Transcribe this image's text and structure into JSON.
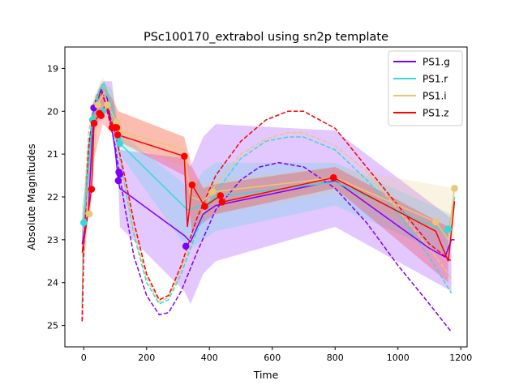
{
  "chart_data": {
    "type": "line",
    "title": "PSc100170_extrabol using sn2p template",
    "xlabel": "Time",
    "ylabel": "Absolute Magnitudes",
    "xlim": [
      -60,
      1220
    ],
    "ylim": [
      25.5,
      18.5
    ],
    "y_inverted": true,
    "xticks": [
      "0",
      "200",
      "400",
      "600",
      "800",
      "1000",
      "1200"
    ],
    "yticks": [
      "19",
      "20",
      "21",
      "22",
      "23",
      "24",
      "25"
    ],
    "grid": false,
    "legend_position": "top-right",
    "series": [
      {
        "name": "PS1.g",
        "color": "#7f00ff",
        "obs": [
          [
            32,
            19.92
          ],
          [
            110,
            21.62
          ],
          [
            112,
            21.42
          ],
          [
            115,
            21.47
          ],
          [
            325,
            23.15
          ]
        ],
        "band_upper": [
          [
            -5,
            22.5
          ],
          [
            30,
            19.8
          ],
          [
            60,
            19.3
          ],
          [
            90,
            19.3
          ],
          [
            110,
            20.6
          ],
          [
            115,
            20.9
          ],
          [
            320,
            21.1
          ],
          [
            340,
            21.3
          ],
          [
            380,
            20.6
          ],
          [
            420,
            20.3
          ],
          [
            800,
            20.45
          ],
          [
            1170,
            22.5
          ]
        ],
        "band_lower": [
          [
            -5,
            23.6
          ],
          [
            30,
            20.5
          ],
          [
            60,
            20.0
          ],
          [
            90,
            20.1
          ],
          [
            110,
            21.6
          ],
          [
            115,
            22.7
          ],
          [
            320,
            24.2
          ],
          [
            340,
            24.5
          ],
          [
            380,
            23.8
          ],
          [
            420,
            23.5
          ],
          [
            800,
            22.7
          ],
          [
            1170,
            24.2
          ]
        ],
        "mean_line": [
          [
            -5,
            23.1
          ],
          [
            15,
            22.3
          ],
          [
            32,
            19.92
          ],
          [
            55,
            19.5
          ],
          [
            75,
            19.7
          ],
          [
            100,
            20.9
          ],
          [
            110,
            21.62
          ],
          [
            115,
            21.8
          ],
          [
            320,
            22.9
          ],
          [
            340,
            23.05
          ],
          [
            380,
            22.4
          ],
          [
            420,
            22.2
          ],
          [
            800,
            21.62
          ],
          [
            1100,
            23.2
          ],
          [
            1150,
            23.4
          ],
          [
            1170,
            23.0
          ],
          [
            1180,
            23.0
          ]
        ],
        "template_fit": [
          [
            -5,
            24.9
          ],
          [
            0,
            23.0
          ],
          [
            15,
            20.8
          ],
          [
            35,
            19.8
          ],
          [
            55,
            19.4
          ],
          [
            75,
            20.0
          ],
          [
            100,
            20.8
          ],
          [
            130,
            22.2
          ],
          [
            160,
            23.4
          ],
          [
            200,
            24.3
          ],
          [
            240,
            24.75
          ],
          [
            270,
            24.7
          ],
          [
            310,
            24.2
          ],
          [
            360,
            23.3
          ],
          [
            420,
            22.3
          ],
          [
            500,
            21.6
          ],
          [
            560,
            21.3
          ],
          [
            620,
            21.2
          ],
          [
            700,
            21.3
          ],
          [
            800,
            21.8
          ],
          [
            900,
            22.6
          ],
          [
            1000,
            23.6
          ],
          [
            1100,
            24.5
          ],
          [
            1170,
            25.15
          ]
        ]
      },
      {
        "name": "PS1.r",
        "color": "#36d9d9",
        "obs": [
          [
            0,
            22.6
          ],
          [
            28,
            20.2
          ],
          [
            60,
            20.0
          ],
          [
            110,
            20.6
          ],
          [
            115,
            20.75
          ],
          [
            1160,
            22.75
          ]
        ],
        "band_upper": [
          [
            -5,
            22.2
          ],
          [
            30,
            19.8
          ],
          [
            60,
            19.3
          ],
          [
            90,
            19.5
          ],
          [
            115,
            20.5
          ],
          [
            320,
            21.7
          ],
          [
            340,
            21.9
          ],
          [
            380,
            21.4
          ],
          [
            420,
            21.2
          ],
          [
            800,
            21.2
          ],
          [
            1170,
            22.4
          ]
        ],
        "band_lower": [
          [
            -5,
            23.0
          ],
          [
            30,
            20.4
          ],
          [
            60,
            19.8
          ],
          [
            90,
            20.1
          ],
          [
            115,
            21.0
          ],
          [
            320,
            23.1
          ],
          [
            340,
            23.2
          ],
          [
            380,
            23.0
          ],
          [
            420,
            22.8
          ],
          [
            800,
            22.2
          ],
          [
            1170,
            23.4
          ]
        ],
        "mean_line": [
          [
            0,
            22.6
          ],
          [
            28,
            20.2
          ],
          [
            50,
            19.5
          ],
          [
            65,
            19.35
          ],
          [
            90,
            19.9
          ],
          [
            110,
            20.6
          ],
          [
            115,
            20.75
          ],
          [
            330,
            22.3
          ],
          [
            380,
            22.2
          ],
          [
            420,
            22.0
          ],
          [
            800,
            21.65
          ],
          [
            1160,
            22.85
          ],
          [
            1180,
            22.0
          ]
        ],
        "template_fit": [
          [
            -5,
            24.5
          ],
          [
            0,
            22.6
          ],
          [
            15,
            20.8
          ],
          [
            35,
            19.8
          ],
          [
            55,
            19.4
          ],
          [
            75,
            19.7
          ],
          [
            100,
            20.5
          ],
          [
            130,
            21.7
          ],
          [
            160,
            22.9
          ],
          [
            200,
            24.0
          ],
          [
            240,
            24.5
          ],
          [
            270,
            24.4
          ],
          [
            310,
            23.8
          ],
          [
            360,
            22.8
          ],
          [
            420,
            21.9
          ],
          [
            500,
            21.1
          ],
          [
            580,
            20.7
          ],
          [
            650,
            20.6
          ],
          [
            700,
            20.6
          ],
          [
            800,
            20.9
          ],
          [
            900,
            21.6
          ],
          [
            1000,
            22.4
          ],
          [
            1100,
            23.4
          ],
          [
            1170,
            24.25
          ]
        ]
      },
      {
        "name": "PS1.i",
        "color": "#e8c777",
        "obs": [
          [
            18,
            22.4
          ],
          [
            45,
            19.85
          ],
          [
            75,
            19.85
          ],
          [
            105,
            20.25
          ],
          [
            110,
            20.45
          ],
          [
            410,
            21.88
          ],
          [
            1120,
            22.58
          ],
          [
            1180,
            21.8
          ]
        ],
        "band_upper": [
          [
            -5,
            22.4
          ],
          [
            30,
            19.7
          ],
          [
            60,
            19.2
          ],
          [
            90,
            19.5
          ],
          [
            110,
            20.0
          ],
          [
            320,
            20.6
          ],
          [
            340,
            21.5
          ],
          [
            380,
            21.7
          ],
          [
            420,
            21.6
          ],
          [
            800,
            21.3
          ],
          [
            1180,
            21.8
          ]
        ],
        "band_lower": [
          [
            -5,
            23.3
          ],
          [
            30,
            20.4
          ],
          [
            60,
            19.9
          ],
          [
            90,
            20.2
          ],
          [
            110,
            20.7
          ],
          [
            320,
            21.3
          ],
          [
            340,
            22.5
          ],
          [
            380,
            22.5
          ],
          [
            420,
            22.4
          ],
          [
            800,
            21.9
          ],
          [
            1180,
            23.0
          ]
        ],
        "mean_line": [
          [
            18,
            22.4
          ],
          [
            45,
            19.85
          ],
          [
            65,
            19.55
          ],
          [
            75,
            19.85
          ],
          [
            105,
            20.25
          ],
          [
            110,
            20.45
          ],
          [
            320,
            20.9
          ],
          [
            340,
            22.0
          ],
          [
            380,
            22.1
          ],
          [
            410,
            21.88
          ],
          [
            800,
            21.55
          ],
          [
            1120,
            22.58
          ],
          [
            1160,
            23.0
          ],
          [
            1180,
            21.8
          ]
        ],
        "template_fit": [
          [
            -5,
            24.6
          ],
          [
            0,
            22.4
          ],
          [
            15,
            20.5
          ],
          [
            35,
            19.7
          ],
          [
            55,
            19.4
          ],
          [
            75,
            19.8
          ],
          [
            100,
            20.5
          ],
          [
            130,
            21.6
          ],
          [
            160,
            22.8
          ],
          [
            200,
            23.9
          ],
          [
            240,
            24.45
          ],
          [
            270,
            24.35
          ],
          [
            310,
            23.7
          ],
          [
            360,
            22.7
          ],
          [
            420,
            21.7
          ],
          [
            500,
            21.0
          ],
          [
            580,
            20.65
          ],
          [
            650,
            20.5
          ],
          [
            700,
            20.5
          ],
          [
            800,
            20.8
          ],
          [
            900,
            21.4
          ],
          [
            1000,
            22.3
          ],
          [
            1100,
            23.2
          ],
          [
            1170,
            23.9
          ]
        ]
      },
      {
        "name": "PS1.z",
        "color": "#ff0000",
        "obs": [
          [
            25,
            21.82
          ],
          [
            33,
            20.28
          ],
          [
            50,
            20.05
          ],
          [
            55,
            20.1
          ],
          [
            90,
            20.38
          ],
          [
            100,
            20.38
          ],
          [
            105,
            20.38
          ],
          [
            108,
            20.55
          ],
          [
            320,
            21.05
          ],
          [
            345,
            21.72
          ],
          [
            385,
            22.22
          ],
          [
            435,
            21.97
          ],
          [
            440,
            22.12
          ],
          [
            795,
            21.55
          ]
        ],
        "band_upper": [
          [
            -5,
            22.8
          ],
          [
            30,
            20.1
          ],
          [
            60,
            19.4
          ],
          [
            90,
            19.7
          ],
          [
            110,
            20.0
          ],
          [
            320,
            20.6
          ],
          [
            345,
            21.3
          ],
          [
            380,
            21.8
          ],
          [
            420,
            21.7
          ],
          [
            800,
            21.3
          ],
          [
            1160,
            22.7
          ]
        ],
        "band_lower": [
          [
            -5,
            24.0
          ],
          [
            30,
            21.2
          ],
          [
            60,
            20.3
          ],
          [
            90,
            20.5
          ],
          [
            110,
            20.7
          ],
          [
            320,
            21.5
          ],
          [
            345,
            22.8
          ],
          [
            380,
            22.6
          ],
          [
            420,
            22.4
          ],
          [
            800,
            21.8
          ],
          [
            1160,
            24.0
          ]
        ],
        "mean_line": [
          [
            -5,
            23.3
          ],
          [
            25,
            21.82
          ],
          [
            33,
            20.28
          ],
          [
            50,
            20.05
          ],
          [
            55,
            20.1
          ],
          [
            70,
            19.8
          ],
          [
            90,
            20.38
          ],
          [
            108,
            20.55
          ],
          [
            320,
            21.05
          ],
          [
            330,
            22.7
          ],
          [
            345,
            21.72
          ],
          [
            385,
            22.22
          ],
          [
            435,
            21.97
          ],
          [
            440,
            22.12
          ],
          [
            795,
            21.55
          ],
          [
            1120,
            22.8
          ],
          [
            1160,
            23.5
          ],
          [
            1180,
            22.1
          ]
        ],
        "template_fit": [
          [
            -5,
            24.9
          ],
          [
            0,
            23.2
          ],
          [
            15,
            20.9
          ],
          [
            35,
            19.9
          ],
          [
            55,
            19.55
          ],
          [
            75,
            19.9
          ],
          [
            100,
            20.5
          ],
          [
            130,
            21.5
          ],
          [
            160,
            22.6
          ],
          [
            200,
            23.8
          ],
          [
            240,
            24.4
          ],
          [
            270,
            24.3
          ],
          [
            310,
            23.6
          ],
          [
            360,
            22.5
          ],
          [
            420,
            21.5
          ],
          [
            500,
            20.7
          ],
          [
            580,
            20.2
          ],
          [
            650,
            20.0
          ],
          [
            700,
            20.0
          ],
          [
            800,
            20.4
          ],
          [
            900,
            21.3
          ],
          [
            1000,
            22.2
          ],
          [
            1100,
            23.1
          ],
          [
            1170,
            23.5
          ]
        ]
      }
    ]
  }
}
